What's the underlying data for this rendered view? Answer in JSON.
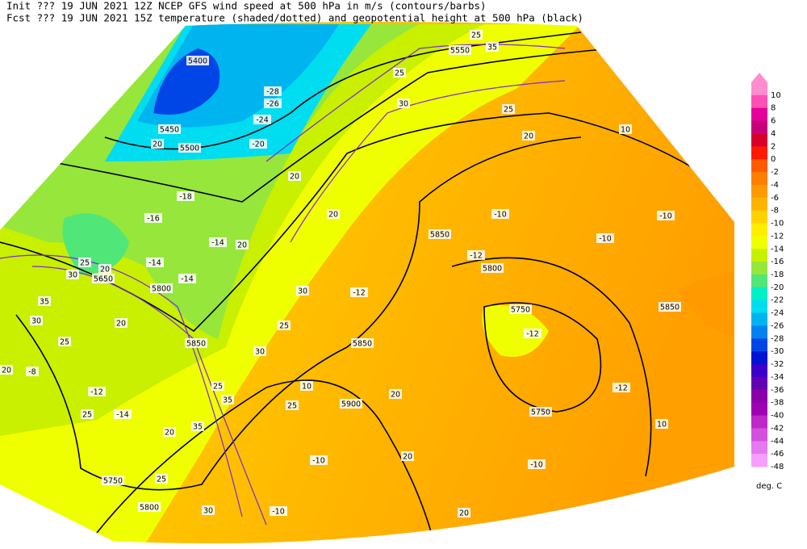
{
  "header": {
    "lines": [
      "Init  ??? 19 JUN 2021 12Z  NCEP GFS wind speed at 500 hPa in m/s (contours/barbs)",
      "Fcst  ??? 19 JUN 2021 15Z  temperature (shaded/dotted) and geopotential height at 500 hPa (black)"
    ]
  },
  "legend": {
    "levels": [
      10,
      8,
      6,
      4,
      2,
      0,
      -2,
      -4,
      -6,
      -8,
      -10,
      -12,
      -14,
      -16,
      -18,
      -20,
      -22,
      -24,
      -26,
      -28,
      -30,
      -32,
      -34,
      -36,
      -38,
      -40,
      -42,
      -44,
      -46,
      -48
    ],
    "colors": [
      "#ff8ccf",
      "#ff50b4",
      "#e6009a",
      "#c8007a",
      "#d8002a",
      "#ff1a00",
      "#ff5a00",
      "#ff7d00",
      "#ff9a00",
      "#ffb400",
      "#ffd200",
      "#ffee00",
      "#f0ff00",
      "#c8f000",
      "#96e63c",
      "#50e678",
      "#00f0c8",
      "#00dcf0",
      "#00b4f0",
      "#0082f0",
      "#0046e6",
      "#0014d2",
      "#3c00c8",
      "#6400b4",
      "#8c00aa",
      "#a000b4",
      "#be28c8",
      "#d250dc",
      "#e678f0",
      "#f5a0ff"
    ],
    "unit": "deg. C"
  },
  "map": {
    "labels": [
      "5400",
      "5450",
      "5500",
      "5550",
      "5650",
      "5800",
      "5850",
      "5850",
      "5900",
      "5850",
      "5800",
      "5750",
      "5750",
      "5850",
      "5750",
      "5800",
      "-28",
      "-26",
      "-24",
      "-20",
      "-18",
      "-16",
      "-14",
      "-14",
      "-14",
      "-12",
      "-12",
      "-10",
      "-10",
      "-10",
      "-12",
      "-12",
      "-10",
      "-10",
      "-10",
      "-8",
      "-12",
      "-14",
      "25",
      "35",
      "25",
      "30",
      "25",
      "20",
      "20",
      "20",
      "20",
      "20",
      "25",
      "20",
      "30",
      "35",
      "30",
      "25",
      "20",
      "20",
      "25",
      "20",
      "30",
      "25",
      "30",
      "25",
      "35",
      "35",
      "25",
      "20",
      "20",
      "25",
      "30",
      "20",
      "10",
      "10",
      "10"
    ]
  }
}
